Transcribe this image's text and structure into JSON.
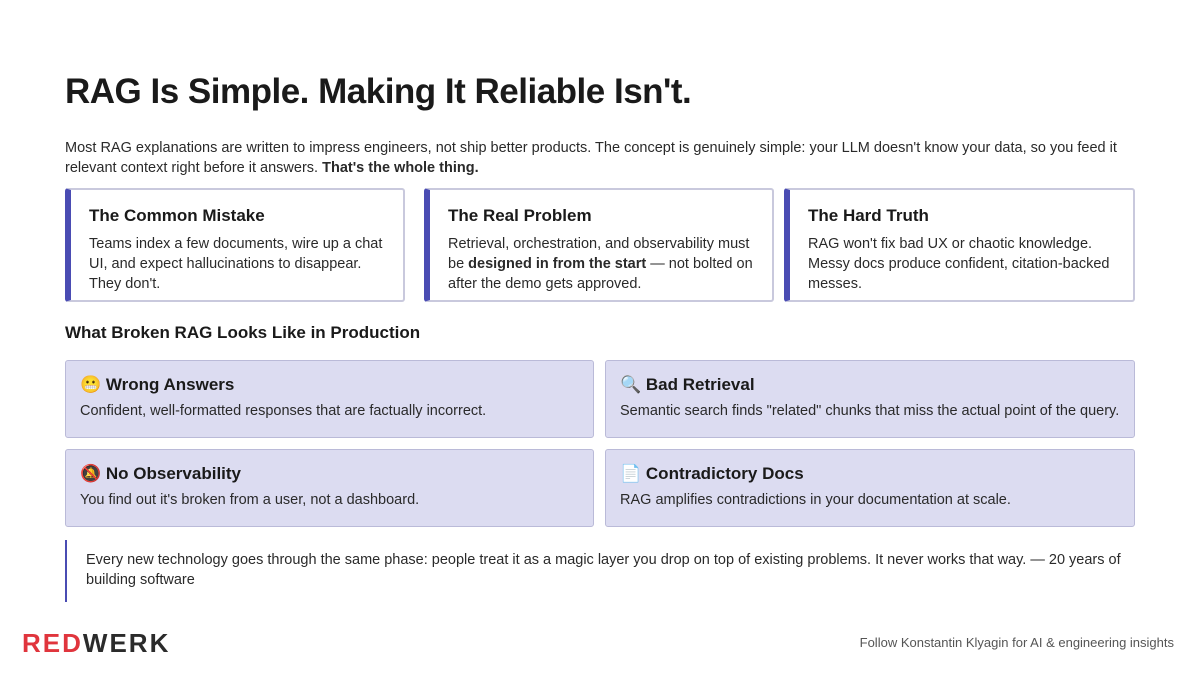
{
  "header": {
    "title": "RAG Is Simple. Making It Reliable Isn't."
  },
  "intro": {
    "parts": [
      "Most RAG explanations are written to impress engineers, not ship better products. The concept is genuinely simple: your LLM doesn't know your data, so you feed it relevant context right before it answers. ",
      "That's the whole thing."
    ]
  },
  "cards": [
    {
      "title": "The Common Mistake",
      "body": [
        "Teams index a few documents, wire up a chat UI, and expect hallucinations to disappear. They don't."
      ]
    },
    {
      "title": "The Real Problem",
      "body": [
        "Retrieval, orchestration, and observability must be ",
        "designed in from the start",
        " — not bolted on after the demo gets approved."
      ]
    },
    {
      "title": "The Hard Truth",
      "body": [
        "RAG won't fix bad UX or chaotic knowledge. Messy docs produce confident, citation-backed messes."
      ]
    }
  ],
  "section": {
    "title": "What Broken RAG Looks Like in Production"
  },
  "problems": [
    {
      "icon": "😬",
      "title": "Wrong Answers",
      "body": "Confident, well-formatted responses that are factually incorrect."
    },
    {
      "icon": "🔍",
      "title": "Bad Retrieval",
      "body": "Semantic search finds \"related\" chunks that miss the actual point of the query."
    },
    {
      "icon": "🔕",
      "title": "No Observability",
      "body": "You find out it's broken from a user, not a dashboard."
    },
    {
      "icon": "📄",
      "title": "Contradictory Docs",
      "body": "RAG amplifies contradictions in your documentation at scale."
    }
  ],
  "quote": {
    "text": "Every new technology goes through the same phase: people treat it as a magic layer you drop on top of existing problems. It never works that way. — 20 years of building software"
  },
  "footer": {
    "logo": [
      "RED",
      "WERK"
    ],
    "credit": "Follow Konstantin Klyagin for AI & engineering insights"
  }
}
